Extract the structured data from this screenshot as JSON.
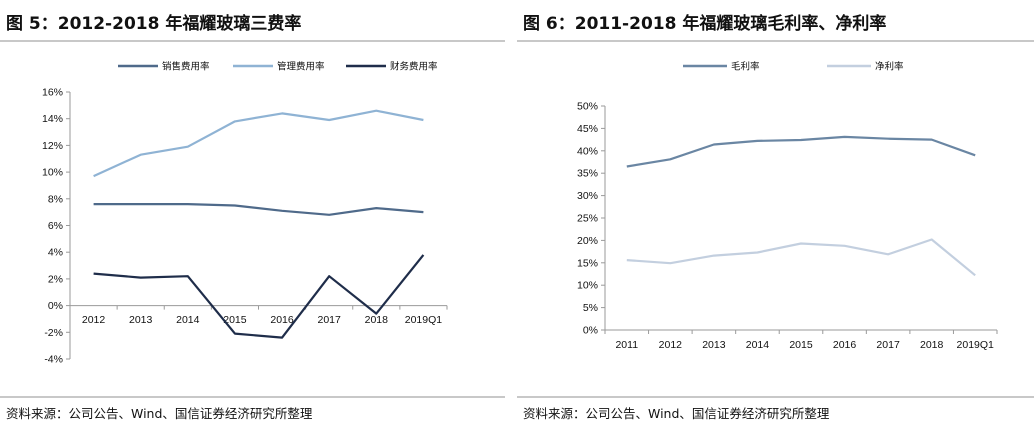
{
  "figures": [
    {
      "title": "图 5：2012-2018 年福耀玻璃三费率",
      "source": "资料来源：公司公告、Wind、国信证券经济研究所整理"
    },
    {
      "title": "图 6：2011-2018 年福耀玻璃毛利率、净利率",
      "source": "资料来源：公司公告、Wind、国信证券经济研究所整理"
    }
  ],
  "chart_data": [
    {
      "type": "line",
      "title": "",
      "xlabel": "",
      "ylabel": "",
      "categories": [
        "2012",
        "2013",
        "2014",
        "2015",
        "2016",
        "2017",
        "2018",
        "2019Q1"
      ],
      "yticks": [
        "-4%",
        "-2%",
        "0%",
        "2%",
        "4%",
        "6%",
        "8%",
        "10%",
        "12%",
        "14%",
        "16%"
      ],
      "ylim": [
        -4,
        16
      ],
      "grid": false,
      "legend": "top",
      "series": [
        {
          "name": "销售费用率",
          "color": "#4f6a8a",
          "values": [
            7.6,
            7.6,
            7.6,
            7.5,
            7.1,
            6.8,
            7.3,
            7.0
          ]
        },
        {
          "name": "管理费用率",
          "color": "#8fb3d4",
          "values": [
            9.7,
            11.3,
            11.9,
            13.8,
            14.4,
            13.9,
            14.6,
            13.9
          ]
        },
        {
          "name": "财务费用率",
          "color": "#1f2d4a",
          "values": [
            2.4,
            2.1,
            2.2,
            -2.1,
            -2.4,
            2.2,
            -0.6,
            3.8
          ]
        }
      ]
    },
    {
      "type": "line",
      "title": "",
      "xlabel": "",
      "ylabel": "",
      "categories": [
        "2011",
        "2012",
        "2013",
        "2014",
        "2015",
        "2016",
        "2017",
        "2018",
        "2019Q1"
      ],
      "yticks": [
        "0%",
        "5%",
        "10%",
        "15%",
        "20%",
        "25%",
        "30%",
        "35%",
        "40%",
        "45%",
        "50%"
      ],
      "ylim": [
        0,
        50
      ],
      "grid": false,
      "legend": "top",
      "series": [
        {
          "name": "毛利率",
          "color": "#6a86a3",
          "values": [
            36.5,
            38.1,
            41.4,
            42.2,
            42.4,
            43.1,
            42.7,
            42.5,
            39.0
          ]
        },
        {
          "name": "净利率",
          "color": "#c3cfdf",
          "values": [
            15.6,
            14.9,
            16.6,
            17.3,
            19.3,
            18.8,
            16.9,
            20.2,
            12.2
          ]
        }
      ]
    }
  ]
}
